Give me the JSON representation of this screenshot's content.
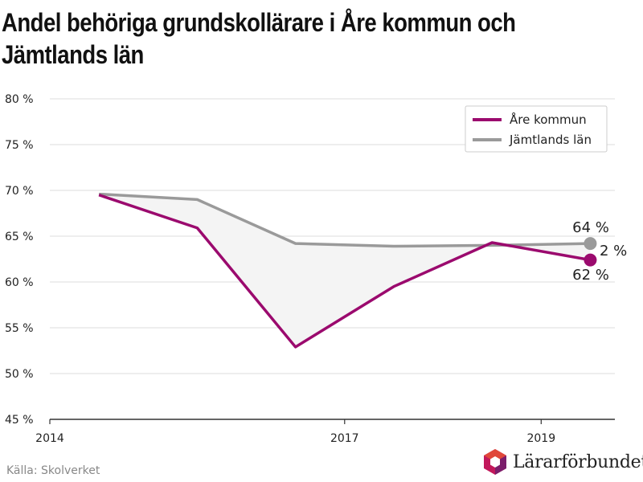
{
  "title": "Andel behöriga grundskollärare i Åre kommun och Jämtlands län",
  "source": "Källa: Skolverket",
  "logo_text": "Lärarförbundet",
  "colors": {
    "are": "#9b0a6e",
    "jamtland": "#9a9a9a",
    "fill": "#f4f4f4",
    "grid": "#dddddd",
    "logo_magenta": "#c2185b",
    "logo_red": "#e0483a",
    "logo_purple": "#7b1d6b"
  },
  "chart_data": {
    "type": "line",
    "title": "Andel behöriga grundskollärare i Åre kommun och Jämtlands län",
    "x": [
      2014.5,
      2015.5,
      2016.5,
      2017.5,
      2018.5,
      2019.5
    ],
    "xlim": [
      2014,
      2019.75
    ],
    "xticks": [
      2014,
      2017,
      2019
    ],
    "ylim": [
      45,
      80
    ],
    "yticks": [
      45,
      50,
      55,
      60,
      65,
      70,
      75,
      80
    ],
    "ytick_labels": [
      "45 %",
      "50 %",
      "55 %",
      "60 %",
      "65 %",
      "70 %",
      "75 %",
      "80 %"
    ],
    "grid": true,
    "legend_position": "top-right",
    "series": [
      {
        "name": "Åre kommun",
        "color": "#9b0a6e",
        "values": [
          69.5,
          65.9,
          52.9,
          59.5,
          64.3,
          62.4
        ]
      },
      {
        "name": "Jämtlands län",
        "color": "#9a9a9a",
        "values": [
          69.6,
          69.0,
          64.2,
          63.9,
          64.0,
          64.2
        ]
      }
    ],
    "end_labels": {
      "top": "64 %",
      "middle": "2 %",
      "bottom": "62 %"
    }
  }
}
